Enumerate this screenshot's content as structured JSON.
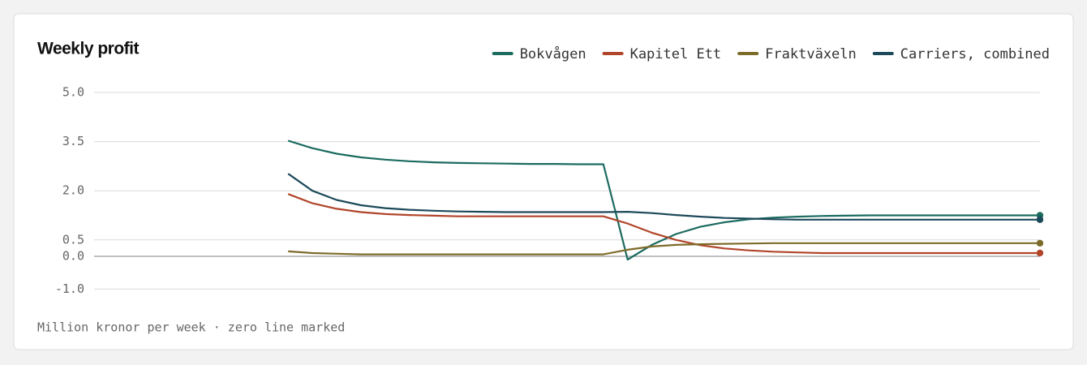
{
  "chart_data": {
    "type": "line",
    "title": "Weekly profit",
    "subtitle": "Million kronor per week · zero line marked",
    "categories": [
      null,
      null,
      null,
      null,
      null,
      null,
      null,
      null,
      null,
      null,
      null,
      null,
      null,
      null,
      null,
      null,
      null,
      null,
      null,
      null,
      null,
      null,
      null,
      null,
      null,
      null,
      null,
      null,
      null,
      null,
      null,
      null,
      null,
      null,
      null,
      null,
      null,
      null,
      null,
      null
    ],
    "series": [
      {
        "name": "Bokvågen",
        "color": "#1b6b5f",
        "values": [
          null,
          null,
          null,
          null,
          null,
          null,
          null,
          null,
          3.53,
          3.3,
          3.13,
          3.02,
          2.95,
          2.9,
          2.87,
          2.85,
          2.84,
          2.83,
          2.82,
          2.82,
          2.81,
          2.81,
          -0.1,
          0.35,
          0.68,
          0.9,
          1.04,
          1.13,
          1.18,
          1.21,
          1.23,
          1.24,
          1.25,
          1.25,
          1.25,
          1.25,
          1.25,
          1.25,
          1.25,
          1.25
        ]
      },
      {
        "name": "Kapitel Ett",
        "color": "#b0452a",
        "values": [
          null,
          null,
          null,
          null,
          null,
          null,
          null,
          null,
          1.9,
          1.62,
          1.45,
          1.35,
          1.29,
          1.26,
          1.24,
          1.22,
          1.22,
          1.22,
          1.22,
          1.22,
          1.22,
          1.22,
          1.0,
          0.72,
          0.5,
          0.34,
          0.24,
          0.18,
          0.14,
          0.12,
          0.1,
          0.1,
          0.1,
          0.1,
          0.1,
          0.1,
          0.1,
          0.1,
          0.1,
          0.1
        ]
      },
      {
        "name": "Fraktväxeln",
        "color": "#7d6b2a",
        "values": [
          null,
          null,
          null,
          null,
          null,
          null,
          null,
          null,
          0.15,
          0.1,
          0.08,
          0.06,
          0.06,
          0.06,
          0.06,
          0.06,
          0.06,
          0.06,
          0.06,
          0.06,
          0.06,
          0.06,
          0.2,
          0.3,
          0.35,
          0.37,
          0.38,
          0.39,
          0.4,
          0.4,
          0.4,
          0.4,
          0.4,
          0.4,
          0.4,
          0.4,
          0.4,
          0.4,
          0.4,
          0.4
        ]
      },
      {
        "name": "Carriers, combined",
        "color": "#1d4a5a",
        "values": [
          null,
          null,
          null,
          null,
          null,
          null,
          null,
          null,
          2.52,
          2.0,
          1.72,
          1.56,
          1.47,
          1.42,
          1.39,
          1.37,
          1.36,
          1.35,
          1.35,
          1.35,
          1.35,
          1.35,
          1.36,
          1.32,
          1.26,
          1.21,
          1.17,
          1.15,
          1.13,
          1.12,
          1.12,
          1.12,
          1.12,
          1.12,
          1.12,
          1.12,
          1.12,
          1.12,
          1.12,
          1.12
        ]
      }
    ],
    "ylim": [
      -1,
      5
    ],
    "yticks": [
      {
        "value": 5,
        "label": "5.0"
      },
      {
        "value": 3.5,
        "label": "3.5"
      },
      {
        "value": 2,
        "label": "2.0"
      },
      0.5,
      {
        "value": 0,
        "label": "0.0"
      },
      {
        "value": -1,
        "label": "-1.0"
      }
    ],
    "grid": true,
    "zero_line": true,
    "legend": "top-right"
  }
}
